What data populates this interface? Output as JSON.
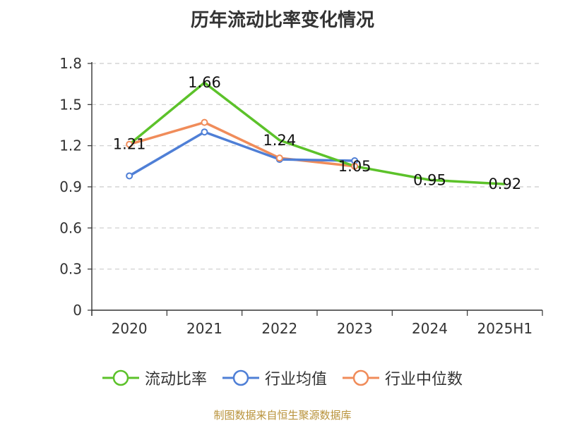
{
  "title": "历年流动比率变化情况",
  "source": "制图数据来自恒生聚源数据库",
  "colors": {
    "axis": "#333333",
    "grid": "#cccccc",
    "text": "#333333"
  },
  "chart_data": {
    "type": "line",
    "categories": [
      "2020",
      "2021",
      "2022",
      "2023",
      "2024",
      "2025H1"
    ],
    "ylim": [
      0,
      1.8
    ],
    "yticks": [
      "0",
      "0.3",
      "0.6",
      "0.9",
      "1.2",
      "1.5",
      "1.8"
    ],
    "grid": true,
    "legend_position": "bottom",
    "series": [
      {
        "name": "流动比率",
        "color": "#5cc22a",
        "values": [
          1.21,
          1.66,
          1.24,
          1.05,
          0.95,
          0.92
        ],
        "labels": [
          "1.21",
          "1.66",
          "1.24",
          "1.05",
          "0.95",
          "0.92"
        ]
      },
      {
        "name": "行业均值",
        "color": "#4f7fd6",
        "values": [
          0.98,
          1.3,
          1.1,
          1.09,
          null,
          null
        ]
      },
      {
        "name": "行业中位数",
        "color": "#f08c5a",
        "values": [
          1.21,
          1.37,
          1.11,
          1.05,
          null,
          null
        ]
      }
    ]
  }
}
